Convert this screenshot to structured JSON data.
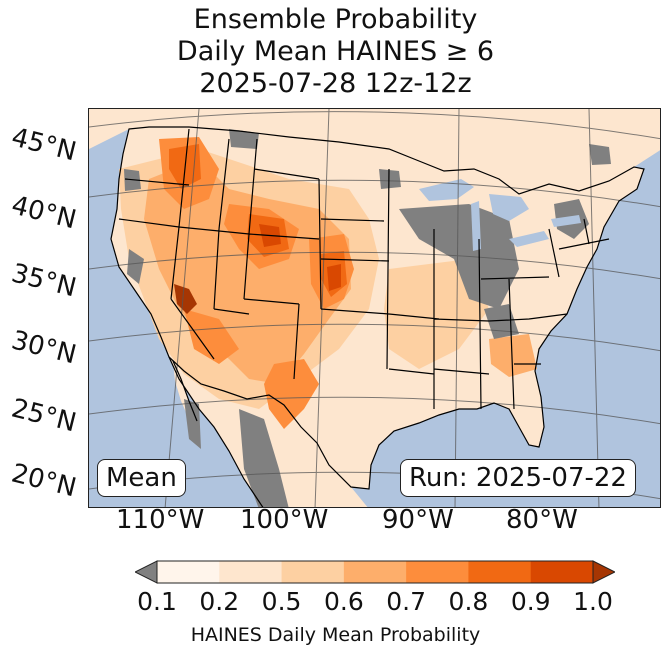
{
  "title": {
    "line1": "Ensemble Probability",
    "line2": "Daily Mean HAINES ≥ 6",
    "line3": "2025-07-28 12z-12z"
  },
  "map": {
    "ocean_color": "#b0c4de",
    "land_outside_color": "#fde6cf",
    "missing_color": "#808080",
    "lat_labels": [
      "45°N",
      "40°N",
      "35°N",
      "30°N",
      "25°N",
      "20°N"
    ],
    "lon_labels": [
      "110°W",
      "100°W",
      "90°W",
      "80°W"
    ],
    "mean_label": "Mean",
    "run_label": "Run: 2025-07-22"
  },
  "colorbar": {
    "ticks": [
      "0.1",
      "0.2",
      "0.5",
      "0.6",
      "0.7",
      "0.8",
      "0.9",
      "1.0"
    ],
    "colors": [
      "#fff5eb",
      "#fee6ce",
      "#fdd0a2",
      "#fdae6b",
      "#fd8d3c",
      "#f16913",
      "#d94801",
      "#a63603"
    ],
    "under_color": "#808080",
    "label": "HAINES Daily Mean Probability"
  }
}
